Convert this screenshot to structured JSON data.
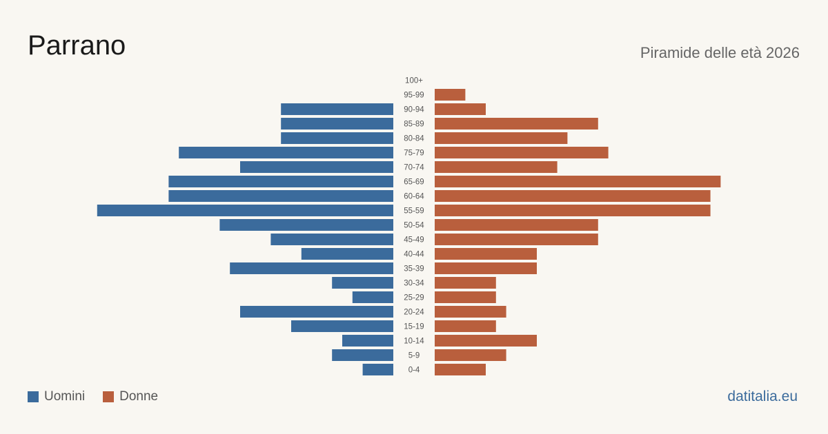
{
  "header": {
    "title": "Parrano",
    "subtitle": "Piramide delle età 2026"
  },
  "legend": {
    "items": [
      {
        "label": "Uomini",
        "color": "#3b6b9c"
      },
      {
        "label": "Donne",
        "color": "#b95f3d"
      }
    ]
  },
  "footer": {
    "source": "datitalia.eu"
  },
  "colors": {
    "background": "#f9f7f2",
    "men": "#3b6b9c",
    "women": "#b95f3d"
  },
  "chart_data": {
    "type": "bar",
    "orientation": "horizontal-pyramid",
    "categories": [
      "100+",
      "95-99",
      "90-94",
      "85-89",
      "80-84",
      "75-79",
      "70-74",
      "65-69",
      "60-64",
      "55-59",
      "50-54",
      "45-49",
      "40-44",
      "35-39",
      "30-34",
      "25-29",
      "20-24",
      "15-19",
      "10-14",
      "5-9",
      "0-4"
    ],
    "series": [
      {
        "name": "Uomini",
        "values": [
          0,
          0,
          11,
          11,
          11,
          21,
          15,
          22,
          22,
          29,
          17,
          12,
          9,
          16,
          6,
          4,
          15,
          10,
          5,
          6,
          3
        ]
      },
      {
        "name": "Donne",
        "values": [
          0,
          3,
          5,
          16,
          13,
          17,
          12,
          28,
          27,
          27,
          16,
          16,
          10,
          10,
          6,
          6,
          7,
          6,
          10,
          7,
          5
        ]
      }
    ],
    "title": "Parrano",
    "subtitle": "Piramide delle età 2026",
    "legend_position": "bottom-left",
    "grid": false
  }
}
